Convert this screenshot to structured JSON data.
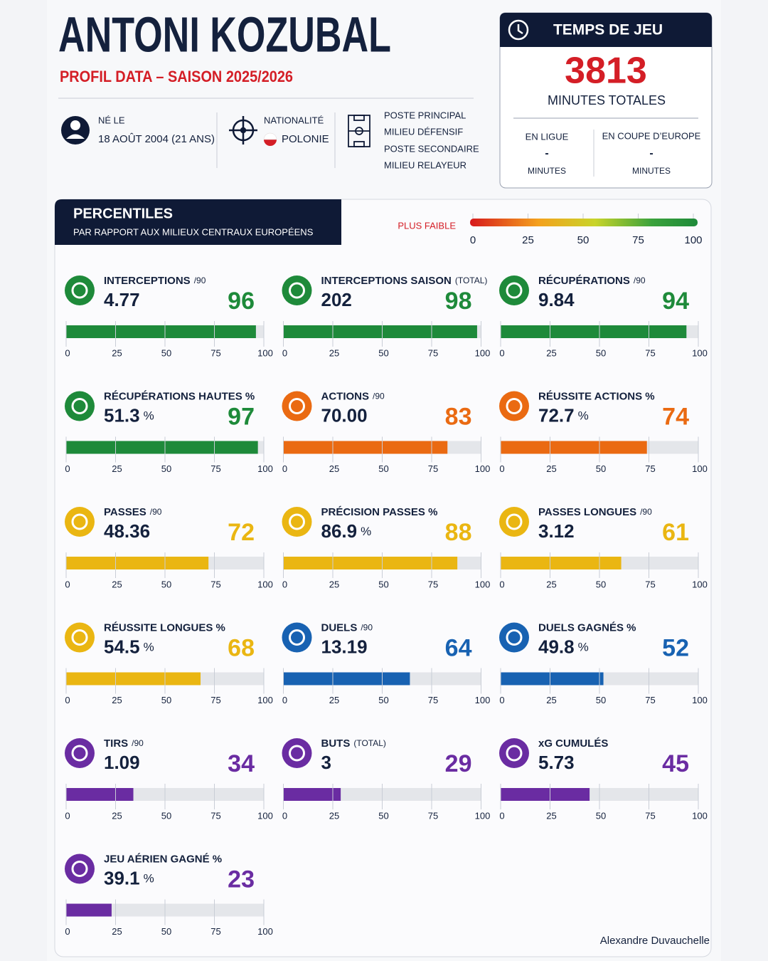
{
  "header": {
    "name": "ANTONI KOZUBAL",
    "subtitle": "PROFIL DATA – SAISON 2025/2026"
  },
  "profile": {
    "birth_label": "NÉ LE",
    "birth_value": "18 AOÛT 2004 (21 ANS)",
    "nationality_label": "NATIONALITÉ",
    "nationality_value": "POLONIE",
    "position_primary_label": "POSTE PRINCIPAL",
    "position_primary": "MILIEU DÉFENSIF",
    "position_secondary_label": "POSTE SECONDAIRE",
    "position_secondary": "MILIEU RELAYEUR"
  },
  "playing_time": {
    "title": "TEMPS DE JEU",
    "total": 3813,
    "total_label": "MINUTES TOTALES",
    "league_label": "EN LIGUE",
    "league_value": "-",
    "league_unit": "MINUTES",
    "europe_label": "EN COUPE D’EUROPE",
    "europe_value": "-",
    "europe_unit": "MINUTES"
  },
  "percentiles": {
    "title": "PERCENTILES",
    "subtitle": "PAR RAPPORT AUX MILIEUX CENTRAUX EUROPÉENS",
    "scale_label": "PLUS FAIBLE",
    "scale_ticks": [
      0,
      25,
      50,
      75,
      100
    ],
    "axis_ticks": [
      0,
      25,
      50,
      75,
      100
    ],
    "metrics": [
      {
        "label": "INTERCEPTIONS",
        "qualifier": "/90",
        "value": "4.77",
        "percentile": 96,
        "color": "#1e8a3a"
      },
      {
        "label": "INTERCEPTIONS SAISON",
        "qualifier": "(TOTAL)",
        "value": "202",
        "percentile": 98,
        "color": "#1e8a3a"
      },
      {
        "label": "RÉCUPÉRATIONS",
        "qualifier": "/90",
        "value": "9.84",
        "percentile": 94,
        "color": "#1e8a3a"
      },
      {
        "label": "RÉCUPÉRATIONS HAUTES %",
        "value": "51.3",
        "unit": "%",
        "percentile": 97,
        "color": "#1e8a3a"
      },
      {
        "label": "ACTIONS",
        "qualifier": "/90",
        "value": "70.00",
        "percentile": 83,
        "color": "#ea6a12"
      },
      {
        "label": "RÉUSSITE ACTIONS %",
        "value": "72.7",
        "unit": "%",
        "percentile": 74,
        "color": "#ea6a12"
      },
      {
        "label": "PASSES",
        "qualifier": "/90",
        "value": "48.36",
        "percentile": 72,
        "color": "#eab612"
      },
      {
        "label": "PRÉCISION PASSES %",
        "value": "86.9",
        "unit": "%",
        "percentile": 88,
        "color": "#eab612"
      },
      {
        "label": "PASSES LONGUES",
        "qualifier": "/90",
        "value": "3.12",
        "percentile": 61,
        "color": "#eab612"
      },
      {
        "label": "RÉUSSITE LONGUES %",
        "value": "54.5",
        "unit": "%",
        "percentile": 68,
        "color": "#eab612"
      },
      {
        "label": "DUELS",
        "qualifier": "/90",
        "value": "13.19",
        "percentile": 64,
        "color": "#1862b2"
      },
      {
        "label": "DUELS GAGNÉS %",
        "value": "49.8",
        "unit": "%",
        "percentile": 52,
        "color": "#1862b2"
      },
      {
        "label": "TIRS",
        "qualifier": "/90",
        "value": "1.09",
        "percentile": 34,
        "color": "#6a2ca2"
      },
      {
        "label": "BUTS",
        "qualifier": "(TOTAL)",
        "value": "3",
        "percentile": 29,
        "color": "#6a2ca2"
      },
      {
        "label": "xG CUMULÉS",
        "value": "5.73",
        "percentile": 45,
        "color": "#6a2ca2"
      },
      {
        "label": "JEU AÉRIEN GAGNÉ %",
        "value": "39.1",
        "unit": "%",
        "percentile": 23,
        "color": "#6a2ca2"
      }
    ]
  },
  "credit": "Alexandre Duvauchelle"
}
